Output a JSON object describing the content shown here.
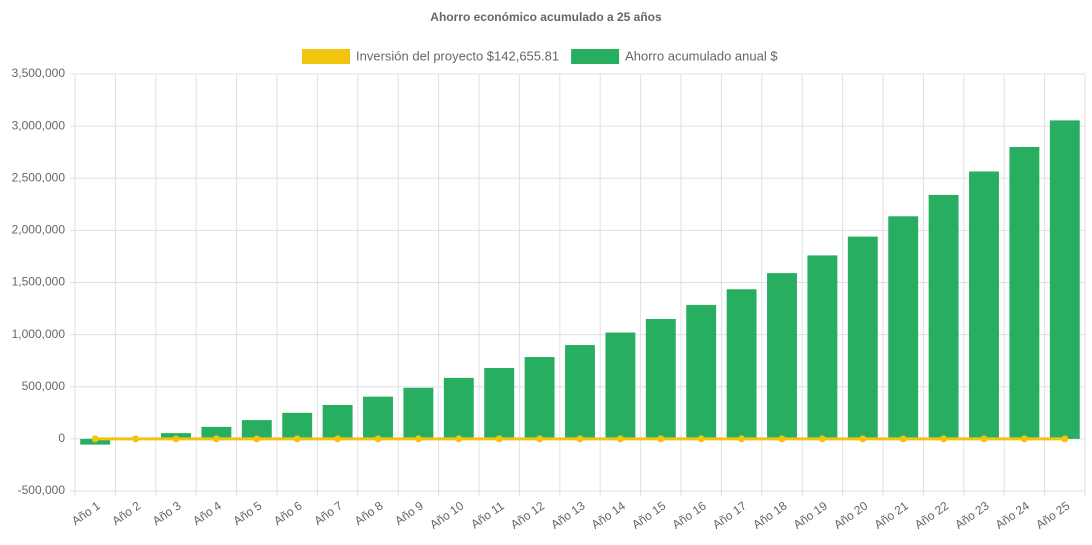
{
  "chart_data": {
    "type": "bar",
    "title": "Ahorro económico acumulado a 25 años",
    "categories": [
      "Año 1",
      "Año 2",
      "Año 3",
      "Año 4",
      "Año 5",
      "Año 6",
      "Año 7",
      "Año 8",
      "Año 9",
      "Año 10",
      "Año 11",
      "Año 12",
      "Año 13",
      "Año 14",
      "Año 15",
      "Año 16",
      "Año 17",
      "Año 18",
      "Año 19",
      "Año 20",
      "Año 21",
      "Año 22",
      "Año 23",
      "Año 24",
      "Año 25"
    ],
    "series": [
      {
        "name": "Inversión del proyecto $142,655.81",
        "type": "line",
        "color": "#f1c40f",
        "values": [
          0,
          0,
          0,
          0,
          0,
          0,
          0,
          0,
          0,
          0,
          0,
          0,
          0,
          0,
          0,
          0,
          0,
          0,
          0,
          0,
          0,
          0,
          0,
          0,
          0
        ]
      },
      {
        "name": "Ahorro acumulado anual $",
        "type": "bar",
        "color": "#27ae60",
        "values": [
          -55000,
          5000,
          55000,
          115000,
          180000,
          250000,
          325000,
          405000,
          490000,
          585000,
          680000,
          785000,
          900000,
          1020000,
          1150000,
          1285000,
          1435000,
          1590000,
          1760000,
          1940000,
          2135000,
          2340000,
          2565000,
          2800000,
          3055000
        ]
      }
    ],
    "ylim": [
      -500000,
      3500000
    ],
    "yticks": [
      {
        "value": -500000,
        "label": "-500,000"
      },
      0,
      {
        "value": 500000,
        "label": "500,000"
      },
      {
        "value": 1000000,
        "label": "1,000,000"
      },
      {
        "value": 1500000,
        "label": "1,500,000"
      },
      {
        "value": 2000000,
        "label": "2,000,000"
      },
      {
        "value": 2500000,
        "label": "2,500,000"
      },
      {
        "value": 3000000,
        "label": "3,000,000"
      },
      {
        "value": 3500000,
        "label": "3,500,000"
      }
    ],
    "grid": true
  }
}
